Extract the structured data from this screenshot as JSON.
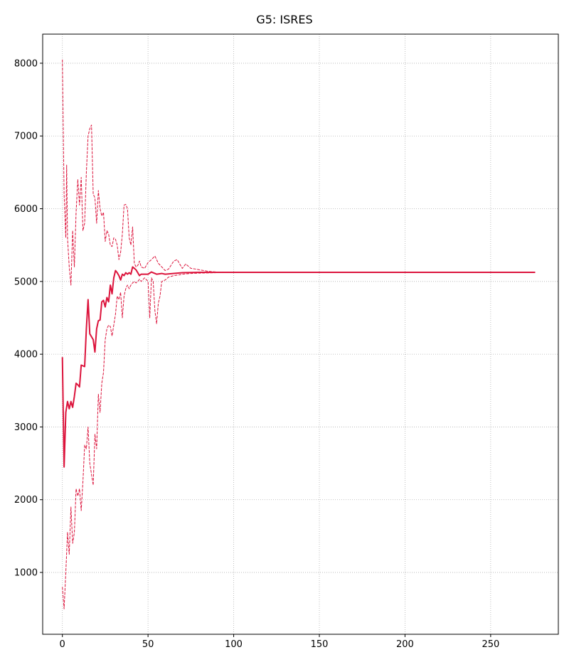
{
  "chart_data": {
    "type": "line",
    "title": "G5: ISRES",
    "xlabel": "",
    "ylabel": "",
    "xlim": [
      -11.5,
      289.5
    ],
    "ylim": [
      150,
      8400
    ],
    "xticks": [
      0,
      50,
      100,
      150,
      200,
      250
    ],
    "yticks": [
      1000,
      2000,
      3000,
      4000,
      5000,
      6000,
      7000,
      8000
    ],
    "grid": true,
    "legend": "none",
    "colors": {
      "series": "#dc143c",
      "grid": "#b0b0b0",
      "axis": "#000000"
    },
    "series": [
      {
        "style": "solid",
        "x": [
          0,
          1,
          2,
          3,
          4,
          5,
          6,
          7,
          8,
          9,
          10,
          11,
          12,
          13,
          14,
          15,
          16,
          18,
          19,
          20,
          21,
          22,
          23,
          24,
          25,
          26,
          27,
          28,
          29,
          30,
          31,
          32,
          33,
          34,
          35,
          36,
          37,
          38,
          39,
          40,
          41,
          42,
          43,
          44,
          45,
          46,
          48,
          50,
          52,
          55,
          58,
          60,
          70,
          80,
          100,
          150,
          200,
          250,
          276
        ],
        "y": [
          3960,
          2450,
          3200,
          3350,
          3250,
          3350,
          3270,
          3420,
          3600,
          3580,
          3550,
          3850,
          3840,
          3830,
          4350,
          4750,
          4280,
          4200,
          4030,
          4350,
          4460,
          4470,
          4720,
          4740,
          4650,
          4780,
          4720,
          4950,
          4830,
          5050,
          5150,
          5120,
          5080,
          5020,
          5100,
          5080,
          5120,
          5100,
          5120,
          5100,
          5200,
          5180,
          5160,
          5120,
          5080,
          5100,
          5100,
          5100,
          5130,
          5100,
          5110,
          5100,
          5120,
          5125,
          5125,
          5125,
          5125,
          5125,
          5125
        ]
      },
      {
        "style": "dashed",
        "x": [
          0,
          1,
          2,
          2.5,
          3,
          4,
          5,
          6,
          7,
          8,
          9,
          10,
          11,
          12,
          13,
          14,
          15,
          16,
          17,
          18,
          19,
          20,
          21,
          22,
          23,
          24,
          25,
          26,
          27,
          28,
          29,
          30,
          31,
          32,
          33,
          34,
          35,
          36,
          37,
          38,
          39,
          40,
          41,
          42,
          43,
          44,
          45,
          46,
          48,
          50,
          52,
          54,
          56,
          58,
          60,
          62,
          65,
          67,
          70,
          72,
          75,
          78,
          80,
          85,
          90,
          100,
          150,
          200,
          250,
          276
        ],
        "y": [
          8050,
          6200,
          5600,
          6600,
          5600,
          5200,
          4950,
          5700,
          5200,
          5950,
          6400,
          6050,
          6430,
          5700,
          5800,
          6500,
          7000,
          7100,
          7150,
          6200,
          6150,
          5800,
          6250,
          6000,
          5900,
          5950,
          5550,
          5700,
          5650,
          5500,
          5480,
          5600,
          5580,
          5500,
          5300,
          5400,
          5650,
          6050,
          6060,
          6000,
          5600,
          5500,
          5750,
          5250,
          5200,
          5220,
          5280,
          5200,
          5180,
          5260,
          5300,
          5350,
          5250,
          5200,
          5150,
          5170,
          5280,
          5300,
          5180,
          5240,
          5180,
          5170,
          5160,
          5140,
          5130,
          5125,
          5125,
          5125,
          5125,
          5125
        ]
      },
      {
        "style": "dashed",
        "x": [
          0,
          1,
          2,
          3,
          4,
          5,
          6,
          7,
          8,
          9,
          10,
          11,
          12,
          13,
          14,
          15,
          16,
          17,
          18,
          19,
          20,
          21,
          22,
          23,
          24,
          25,
          26,
          27,
          28,
          29,
          30,
          31,
          32,
          33,
          34,
          35,
          36,
          37,
          38,
          39,
          40,
          41,
          42,
          43,
          44,
          45,
          46,
          48,
          50,
          51,
          52,
          53,
          54,
          55,
          56,
          57,
          58,
          60,
          62,
          65,
          68,
          70,
          75,
          80,
          90,
          100,
          150,
          200,
          250,
          276
        ],
        "y": [
          800,
          500,
          1000,
          1550,
          1250,
          1900,
          1400,
          1550,
          2150,
          2050,
          2150,
          1850,
          2250,
          2750,
          2700,
          3000,
          2500,
          2350,
          2200,
          2900,
          2700,
          3450,
          3200,
          3600,
          3750,
          4200,
          4350,
          4400,
          4380,
          4250,
          4400,
          4550,
          4800,
          4750,
          4850,
          4500,
          4800,
          4900,
          4950,
          4900,
          4950,
          4980,
          5000,
          4980,
          5000,
          5030,
          5000,
          5050,
          5000,
          4500,
          5050,
          5000,
          4600,
          4420,
          4700,
          4800,
          5000,
          5020,
          5060,
          5080,
          5090,
          5100,
          5110,
          5115,
          5120,
          5125,
          5125,
          5125,
          5125,
          5125
        ]
      }
    ]
  }
}
